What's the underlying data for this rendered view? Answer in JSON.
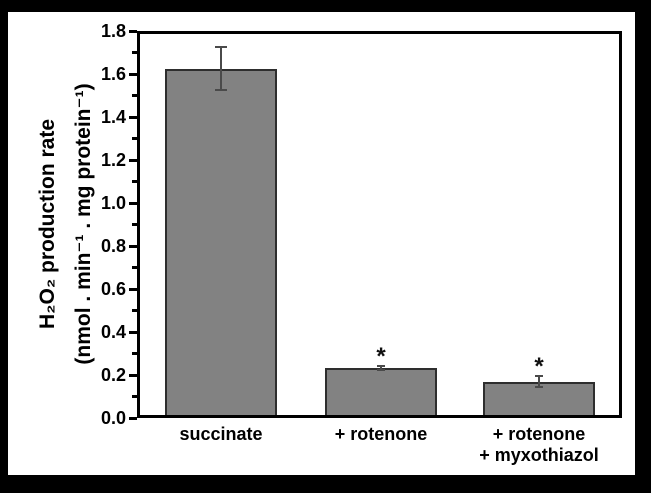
{
  "figure": {
    "background_color": "#000000",
    "panel_color": "#ffffff"
  },
  "chart_data": {
    "type": "bar",
    "title": "",
    "ylabel_lines": [
      "H₂O₂ production rate",
      "(nmol . min⁻¹ . mg protein⁻¹)"
    ],
    "xlabel": "",
    "categories": [
      [
        "succinate"
      ],
      [
        "+ rotenone"
      ],
      [
        "+ rotenone",
        "+ myxothiazol"
      ]
    ],
    "values": [
      1.61,
      0.22,
      0.155
    ],
    "errors": [
      0.1,
      0.01,
      0.025
    ],
    "significance_labels": [
      "",
      "*",
      "*"
    ],
    "ylim": [
      0.0,
      1.8
    ],
    "ytick_step": 0.2,
    "yminor_step": 0.1,
    "ytick_labels": [
      "0.0",
      "0.2",
      "0.4",
      "0.6",
      "0.8",
      "1.0",
      "1.2",
      "1.4",
      "1.6",
      "1.8"
    ],
    "grid": false,
    "legend": null,
    "bar_color": "#828282",
    "bar_border_color": "#2e2e2e",
    "error_bar_color": "#4a4a4a",
    "axis_color": "#000000"
  }
}
